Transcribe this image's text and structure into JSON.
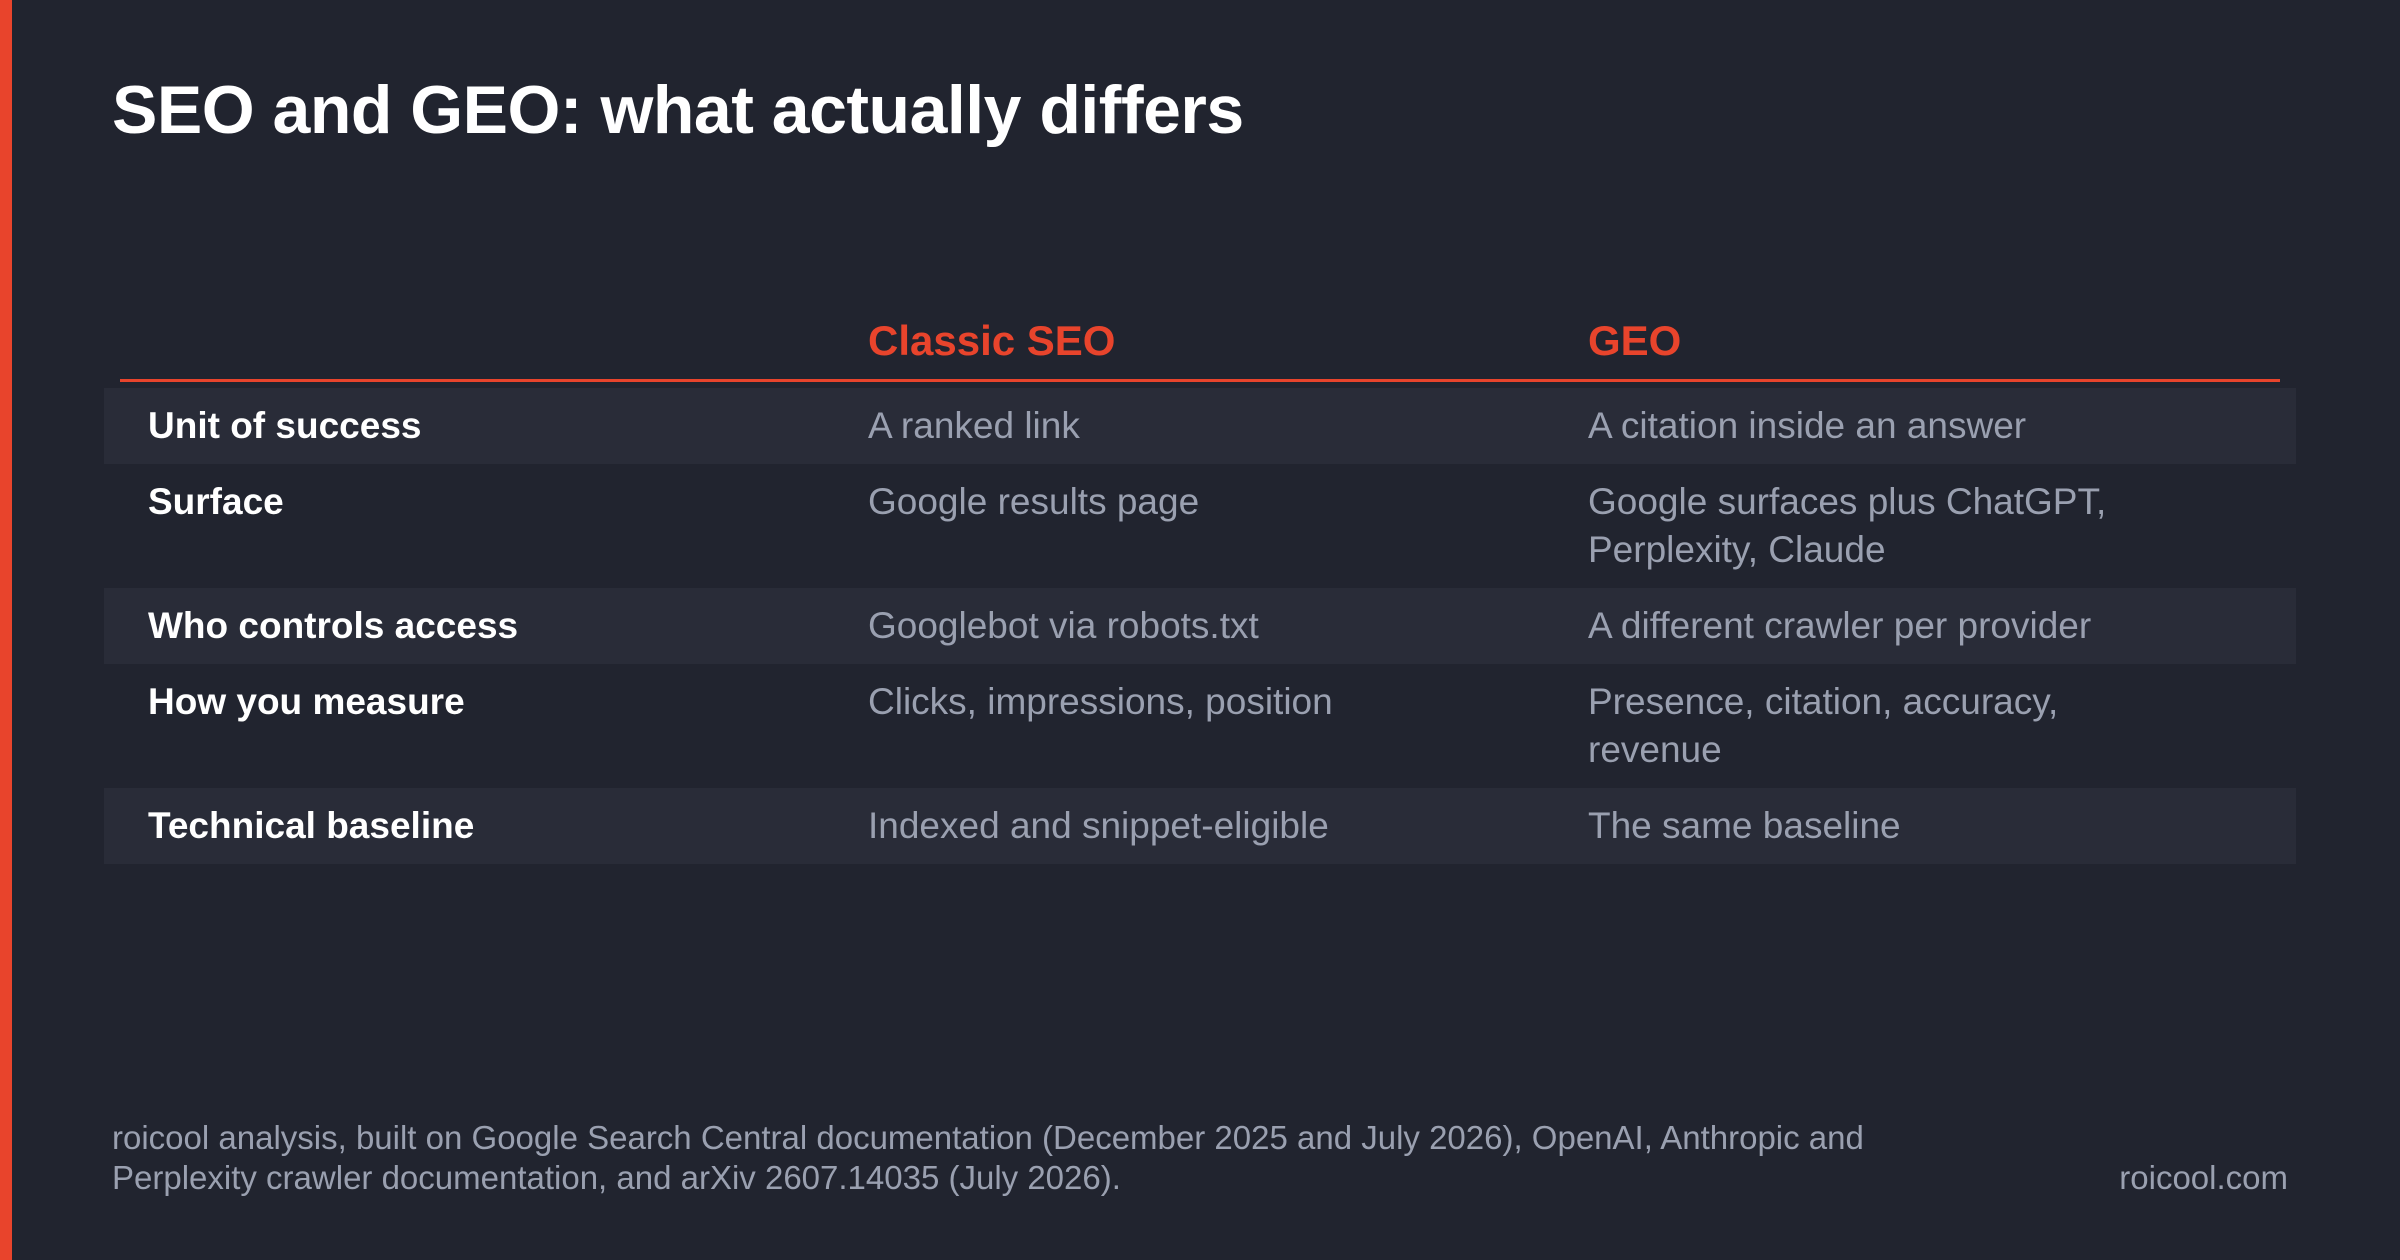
{
  "title": "SEO and GEO: what actually differs",
  "colors": {
    "accent": "#e8442c",
    "background": "#21242f",
    "shaded_row": "#292c38",
    "muted_text": "#9aa0b0"
  },
  "table": {
    "columns": [
      "",
      "Classic SEO",
      "GEO"
    ],
    "rows": [
      {
        "label": "Unit of success",
        "seo": "A ranked link",
        "geo": "A citation inside an answer"
      },
      {
        "label": "Surface",
        "seo": "Google results page",
        "geo": "Google surfaces plus ChatGPT, Perplexity, Claude"
      },
      {
        "label": "Who controls access",
        "seo": "Googlebot via robots.txt",
        "geo": "A different crawler per provider"
      },
      {
        "label": "How you measure",
        "seo": "Clicks, impressions, position",
        "geo": "Presence, citation, accuracy, revenue"
      },
      {
        "label": "Technical baseline",
        "seo": "Indexed and snippet-eligible",
        "geo": "The same baseline"
      }
    ]
  },
  "footer": {
    "source": "roicool analysis, built on Google Search Central documentation (December 2025 and July 2026), OpenAI, Anthropic and Perplexity crawler documentation, and arXiv 2607.14035 (July 2026).",
    "brand": "roicool.com"
  }
}
